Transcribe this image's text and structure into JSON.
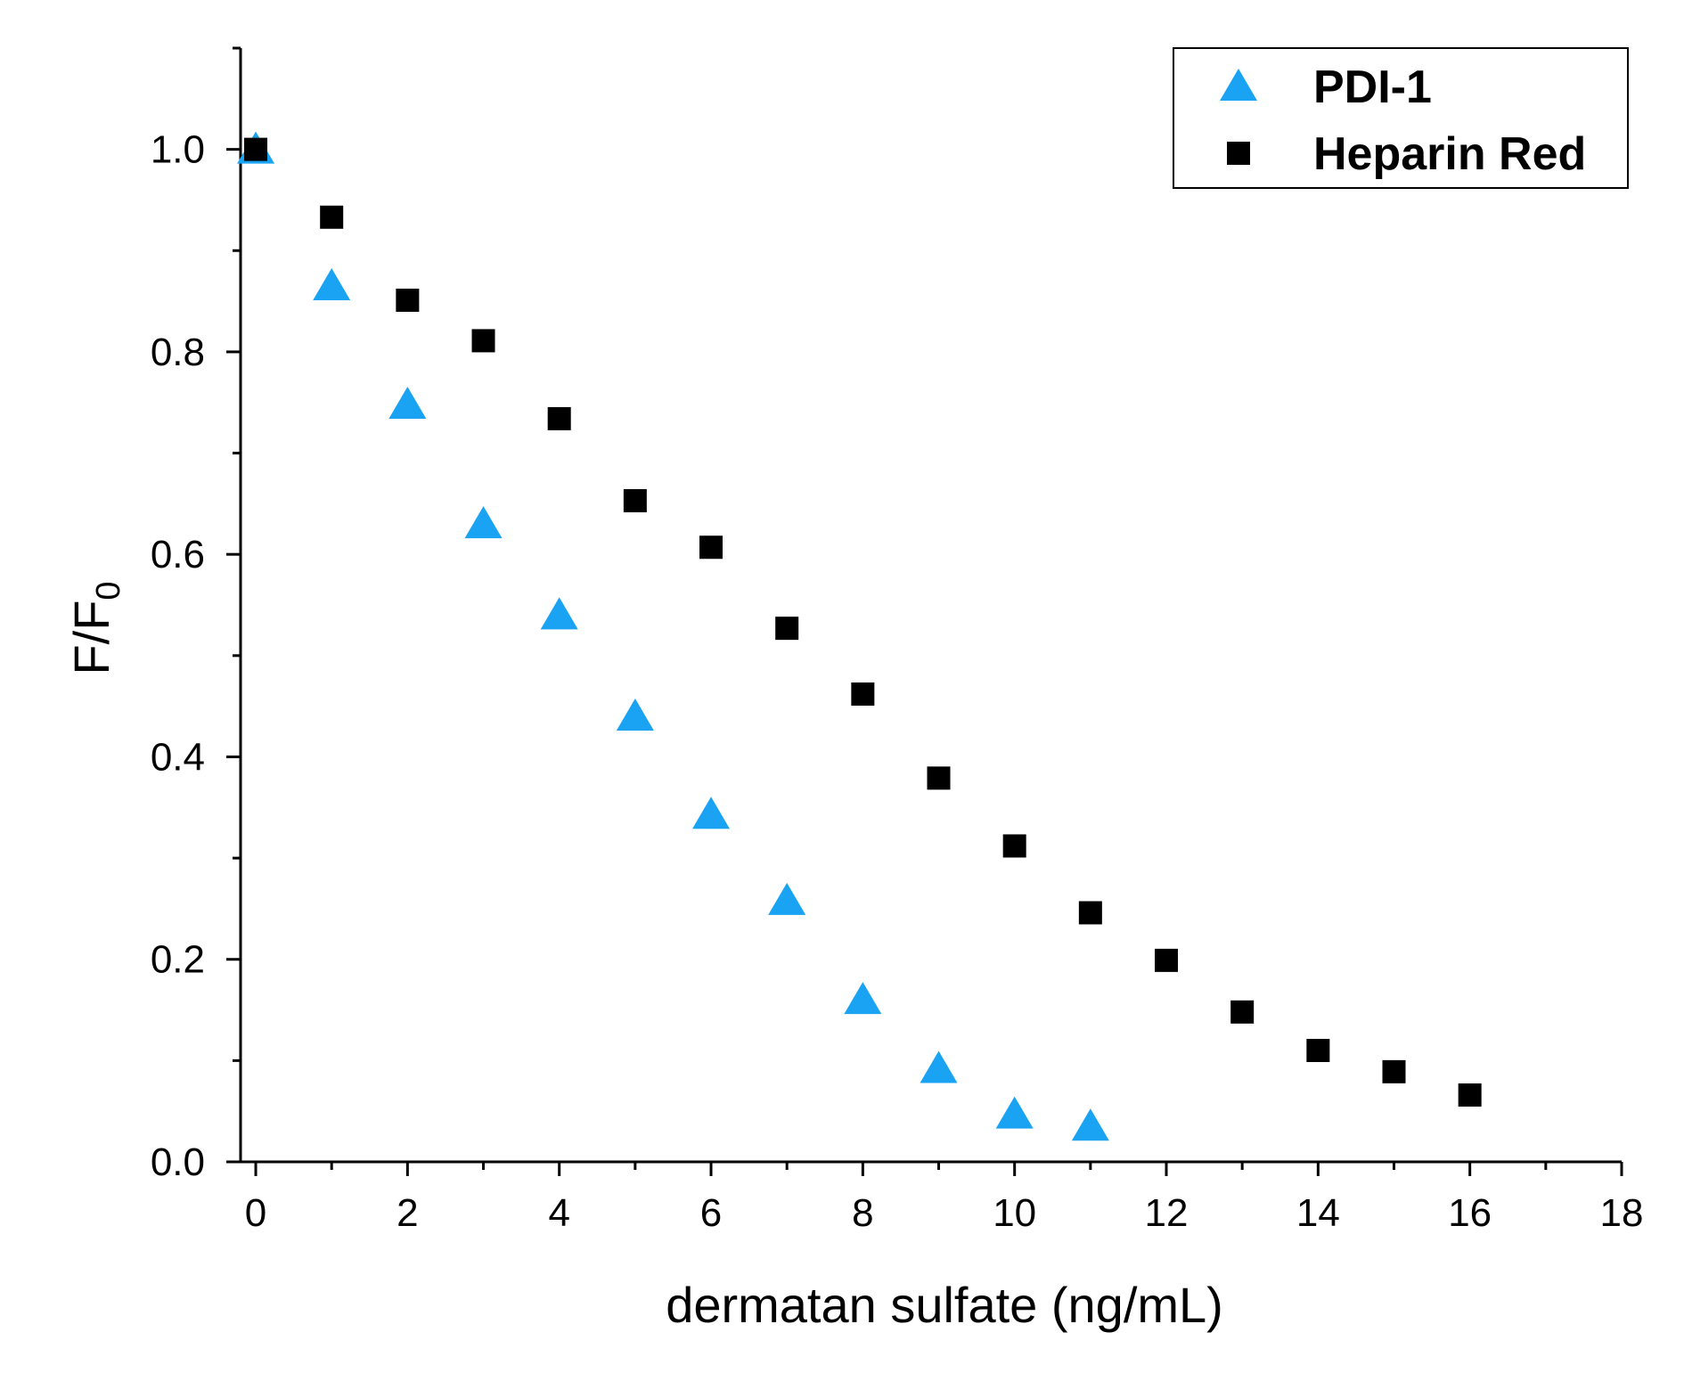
{
  "chart_data": {
    "type": "scatter",
    "title": "",
    "xlabel": "dermatan sulfate (ng/mL)",
    "ylabel_main": "F/F",
    "ylabel_sub": "0",
    "xlim": [
      -0.2,
      18
    ],
    "ylim": [
      0,
      1.1
    ],
    "x_ticks": [
      0,
      2,
      4,
      6,
      8,
      10,
      12,
      14,
      16,
      18
    ],
    "x_tick_labels": [
      "0",
      "2",
      "4",
      "6",
      "8",
      "10",
      "12",
      "14",
      "16",
      "18"
    ],
    "y_ticks": [
      0.0,
      0.2,
      0.4,
      0.6,
      0.8,
      1.0
    ],
    "y_tick_labels": [
      "0.0",
      "0.2",
      "0.4",
      "0.6",
      "0.8",
      "1.0"
    ],
    "grid": false,
    "legend_position": "top-right",
    "series": [
      {
        "name": "PDI-1",
        "marker": "triangle",
        "color": "#1aa3f2",
        "x": [
          0,
          1,
          2,
          3,
          4,
          5,
          6,
          7,
          8,
          9,
          10,
          11
        ],
        "y": [
          1.0,
          0.865,
          0.748,
          0.63,
          0.54,
          0.44,
          0.343,
          0.258,
          0.16,
          0.092,
          0.047,
          0.035
        ]
      },
      {
        "name": "Heparin Red",
        "marker": "square",
        "color": "#000000",
        "x": [
          0,
          1,
          2,
          3,
          4,
          5,
          6,
          7,
          8,
          9,
          10,
          11,
          12,
          13,
          14,
          15,
          16
        ],
        "y": [
          1.0,
          0.933,
          0.851,
          0.811,
          0.734,
          0.653,
          0.607,
          0.527,
          0.462,
          0.379,
          0.312,
          0.246,
          0.199,
          0.148,
          0.11,
          0.089,
          0.066
        ]
      }
    ]
  }
}
